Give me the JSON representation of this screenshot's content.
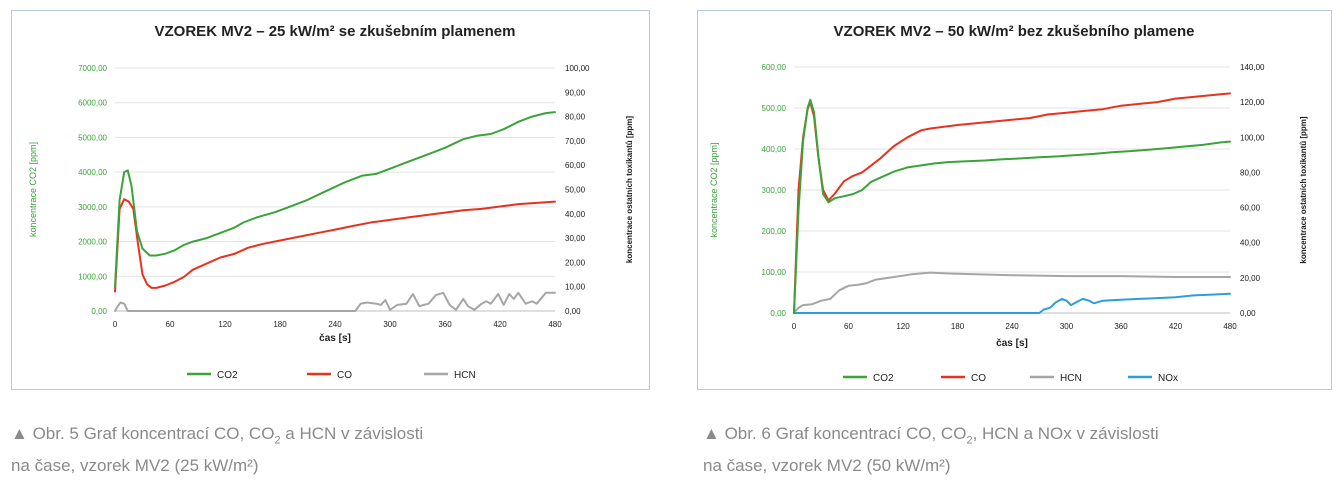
{
  "figures": [
    {
      "caption": {
        "line1_prefix": "Obr. 5 Graf koncentrací CO, CO",
        "line1_sub": "2",
        "line1_suffix": " a HCN v závislosti",
        "line2": "na čase, vzorek MV2 (25 kW/m²)"
      }
    },
    {
      "caption": {
        "line1_prefix": "Obr. 6 Graf koncentrací CO, CO",
        "line1_sub": "2",
        "line1_suffix": ", HCN a NOx v závislosti",
        "line2": "na čase, vzorek MV2 (50 kW/m²)"
      }
    }
  ],
  "colors": {
    "co2": "#3aa33a",
    "co": "#e8321e",
    "hcn": "#a6a6a6",
    "nox": "#2d9fd8",
    "left_axis": "#3aa33a",
    "right_axis": "#1a1a1a",
    "grid": "#e3e3e3",
    "panel_border": "#b9cbd8"
  },
  "chart_data": [
    {
      "type": "line",
      "title": "VZOREK MV2 – 25 kW/m² se zkušebním plamenem",
      "xlabel": "čas [s]",
      "ylabel": "koncentrace CO2 [ppm]",
      "y2label": "koncentrace ostatních toxikantů [ppm]",
      "xlim": [
        0,
        480
      ],
      "ylim": [
        0,
        7000
      ],
      "y2lim": [
        0,
        100
      ],
      "x_ticks": [
        "0",
        "60",
        "120",
        "180",
        "240",
        "300",
        "360",
        "420",
        "480"
      ],
      "y_ticks": [
        "0,00",
        "1000,00",
        "2000,00",
        "3000,00",
        "4000,00",
        "5000,00",
        "6000,00",
        "7000,00"
      ],
      "y2_ticks": [
        "0,00",
        "10,00",
        "20,00",
        "30,00",
        "40,00",
        "50,00",
        "60,00",
        "70,00",
        "80,00",
        "90,00",
        "100,00"
      ],
      "grid": true,
      "legend_position": "bottom",
      "series": [
        {
          "name": "CO2",
          "axis": "left",
          "color_key": "co2",
          "x": [
            0,
            5,
            10,
            14,
            18,
            24,
            30,
            38,
            45,
            55,
            65,
            75,
            85,
            100,
            115,
            130,
            140,
            155,
            175,
            190,
            210,
            230,
            250,
            270,
            285,
            300,
            320,
            340,
            360,
            380,
            395,
            410,
            425,
            440,
            455,
            470,
            480
          ],
          "y": [
            700,
            3200,
            4000,
            4050,
            3600,
            2300,
            1800,
            1600,
            1600,
            1650,
            1750,
            1900,
            2000,
            2100,
            2250,
            2400,
            2550,
            2700,
            2850,
            3000,
            3200,
            3450,
            3700,
            3900,
            3950,
            4100,
            4300,
            4500,
            4700,
            4950,
            5050,
            5100,
            5250,
            5450,
            5600,
            5700,
            5730
          ]
        },
        {
          "name": "CO",
          "axis": "right",
          "color_key": "co",
          "x": [
            0,
            5,
            10,
            15,
            20,
            25,
            30,
            35,
            40,
            45,
            55,
            65,
            75,
            85,
            100,
            115,
            130,
            145,
            160,
            180,
            200,
            220,
            240,
            260,
            280,
            300,
            320,
            340,
            360,
            380,
            400,
            420,
            440,
            460,
            480
          ],
          "y": [
            8,
            42,
            46,
            45,
            42,
            28,
            15,
            11,
            9.5,
            9.5,
            10.5,
            12,
            14,
            17,
            19.5,
            22,
            23.5,
            26,
            27.5,
            29,
            30.5,
            32,
            33.5,
            35,
            36.5,
            37.5,
            38.5,
            39.5,
            40.5,
            41.5,
            42,
            43,
            44,
            44.5,
            45
          ]
        },
        {
          "name": "HCN",
          "axis": "right",
          "color_key": "hcn",
          "x": [
            0,
            3,
            6,
            10,
            14,
            20,
            40,
            100,
            200,
            262,
            268,
            275,
            285,
            290,
            295,
            300,
            308,
            318,
            325,
            332,
            342,
            350,
            358,
            365,
            372,
            380,
            385,
            392,
            400,
            405,
            410,
            418,
            424,
            430,
            435,
            440,
            448,
            455,
            460,
            470,
            480
          ],
          "y": [
            0,
            2,
            3.5,
            3,
            0,
            0,
            0,
            0,
            0,
            0,
            3,
            3.5,
            3,
            2.5,
            4.5,
            0.5,
            2.5,
            3,
            7,
            2,
            3,
            6.5,
            7.5,
            2.5,
            0.5,
            5,
            2,
            0.5,
            3,
            4,
            3,
            7,
            2.5,
            7,
            5,
            7.5,
            3,
            4,
            3,
            7.5,
            7.5
          ]
        }
      ]
    },
    {
      "type": "line",
      "title": "VZOREK MV2 – 50 kW/m² bez zkušebního plamene",
      "xlabel": "čas [s]",
      "ylabel": "koncentrace CO2 [ppm]",
      "y2label": "koncentrace ostatních toxikantů [ppm]",
      "xlim": [
        0,
        480
      ],
      "ylim": [
        0,
        600
      ],
      "y2lim": [
        0,
        140
      ],
      "x_ticks": [
        "0",
        "60",
        "120",
        "180",
        "240",
        "300",
        "360",
        "420",
        "480"
      ],
      "y_ticks": [
        "0,00",
        "100,00",
        "200,00",
        "300,00",
        "400,00",
        "500,00",
        "600,00"
      ],
      "y2_ticks": [
        "0,00",
        "20,00",
        "40,00",
        "60,00",
        "80,00",
        "100,00",
        "120,00",
        "140,00"
      ],
      "grid": true,
      "legend_position": "bottom",
      "series": [
        {
          "name": "CO2",
          "axis": "left",
          "color_key": "co2",
          "x": [
            0,
            5,
            10,
            15,
            18,
            22,
            27,
            32,
            38,
            45,
            55,
            65,
            75,
            85,
            95,
            110,
            125,
            140,
            155,
            170,
            190,
            210,
            230,
            250,
            270,
            290,
            310,
            330,
            350,
            370,
            390,
            410,
            430,
            450,
            470,
            480
          ],
          "y": [
            0,
            250,
            420,
            500,
            520,
            490,
            380,
            290,
            270,
            280,
            285,
            290,
            300,
            320,
            330,
            345,
            355,
            360,
            365,
            368,
            370,
            372,
            375,
            377,
            380,
            382,
            385,
            388,
            392,
            395,
            398,
            402,
            406,
            410,
            416,
            418
          ]
        },
        {
          "name": "CO",
          "axis": "right",
          "color_key": "co",
          "x": [
            0,
            5,
            10,
            15,
            18,
            22,
            27,
            32,
            38,
            45,
            55,
            65,
            75,
            85,
            95,
            110,
            125,
            140,
            150,
            165,
            180,
            200,
            220,
            240,
            260,
            280,
            300,
            320,
            340,
            360,
            380,
            400,
            420,
            440,
            460,
            480
          ],
          "y": [
            0,
            70,
            100,
            116,
            120,
            112,
            88,
            70,
            64,
            68,
            75,
            78,
            80,
            84,
            88,
            95,
            100,
            104,
            105,
            106,
            107,
            108,
            109,
            110,
            111,
            113,
            114,
            115,
            116,
            118,
            119,
            120,
            122,
            123,
            124,
            125
          ]
        },
        {
          "name": "HCN",
          "axis": "right",
          "color_key": "hcn",
          "x": [
            0,
            5,
            10,
            20,
            30,
            40,
            50,
            60,
            70,
            80,
            90,
            110,
            130,
            150,
            170,
            200,
            240,
            300,
            360,
            420,
            480
          ],
          "y": [
            0,
            3,
            4.5,
            5,
            7,
            8,
            13,
            15.5,
            16,
            17,
            19,
            20.5,
            22,
            23,
            22.5,
            22,
            21.5,
            21,
            21,
            20.5,
            20.5
          ]
        },
        {
          "name": "NOx",
          "axis": "right",
          "color_key": "nox",
          "x": [
            0,
            270,
            275,
            282,
            288,
            295,
            300,
            305,
            312,
            318,
            325,
            330,
            340,
            360,
            380,
            400,
            420,
            440,
            460,
            480
          ],
          "y": [
            0,
            0,
            2,
            3,
            6,
            8,
            7,
            4.5,
            6.5,
            8,
            7,
            5.5,
            7,
            7.5,
            8,
            8.5,
            9,
            10,
            10.5,
            11
          ]
        }
      ]
    }
  ]
}
